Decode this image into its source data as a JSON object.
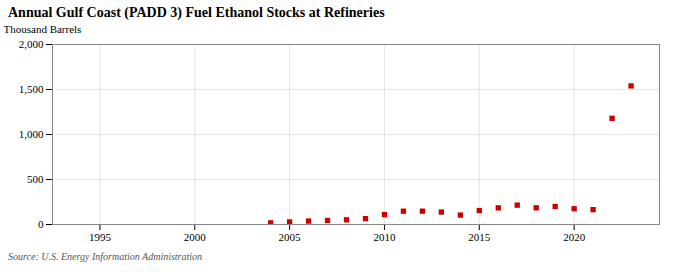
{
  "chart_data": {
    "type": "scatter",
    "title": "Annual Gulf Coast (PADD 3) Fuel Ethanol Stocks at Refineries",
    "ylabel": "Thousand Barrels",
    "source": "Source: U.S. Energy Information Administration",
    "x": [
      2004,
      2005,
      2006,
      2007,
      2008,
      2009,
      2010,
      2011,
      2012,
      2013,
      2014,
      2015,
      2016,
      2017,
      2018,
      2019,
      2020,
      2021,
      2022,
      2023
    ],
    "values": [
      18,
      28,
      38,
      45,
      52,
      65,
      110,
      148,
      148,
      138,
      105,
      155,
      185,
      215,
      185,
      200,
      175,
      165,
      1180,
      1540
    ],
    "color": "#cc0000",
    "marker": "square",
    "xlim": [
      1992.5,
      2024.5
    ],
    "xticks": [
      1995,
      2000,
      2005,
      2010,
      2015,
      2020
    ],
    "ylim": [
      0,
      2000
    ],
    "yticks": [
      0,
      500,
      {
        "value": 1000,
        "label": "1,000"
      },
      {
        "value": 1500,
        "label": "1,500"
      },
      {
        "value": 2000,
        "label": "2,000"
      }
    ],
    "grid": true
  }
}
